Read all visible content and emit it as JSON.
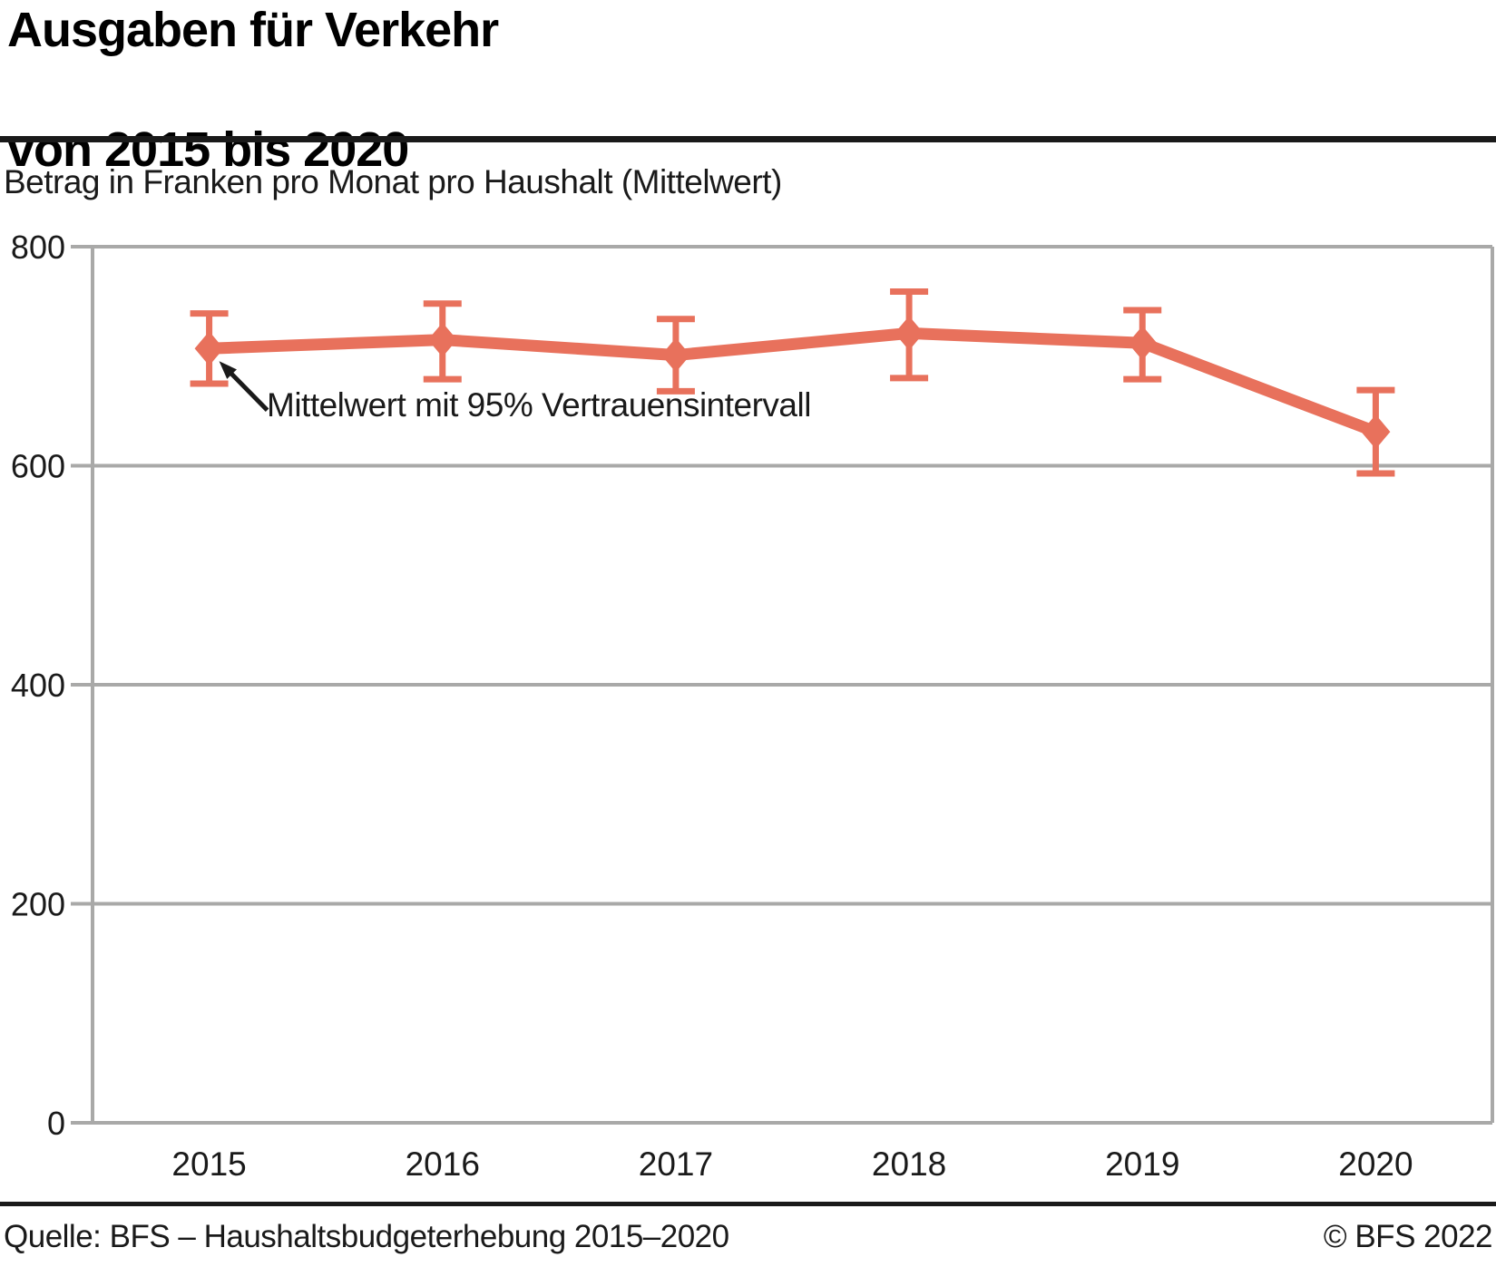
{
  "header": {
    "title_line1": "Ausgaben für Verkehr",
    "title_line2": "von 2015 bis 2020",
    "subtitle": "Betrag in Franken pro Monat pro Haushalt (Mittelwert)"
  },
  "chart_data": {
    "type": "line",
    "title": "Ausgaben für Verkehr von 2015 bis 2020",
    "subtitle": "Betrag in Franken pro Monat pro Haushalt (Mittelwert)",
    "categories": [
      "2015",
      "2016",
      "2017",
      "2018",
      "2019",
      "2020"
    ],
    "series": [
      {
        "name": "Ausgaben für Verkehr",
        "values": [
          707,
          715,
          701,
          721,
          712,
          631
        ],
        "ci_low": [
          675,
          679,
          668,
          680,
          679,
          593
        ],
        "ci_high": [
          739,
          748,
          734,
          759,
          742,
          669
        ]
      }
    ],
    "ylim": [
      0,
      800
    ],
    "yticks": [
      0,
      200,
      400,
      600,
      800
    ],
    "grid": true,
    "legend_position": "none",
    "annotation": "Mittelwert mit 95% Vertrauensintervall",
    "marker": "diamond",
    "line_color": "#e8715c",
    "grid_color": "#a9a9a8",
    "text_color": "#1a1a1a"
  },
  "footer": {
    "source": "Quelle: BFS – Haushaltsbudgeterhebung 2015–2020",
    "copyright": "© BFS 2022"
  }
}
